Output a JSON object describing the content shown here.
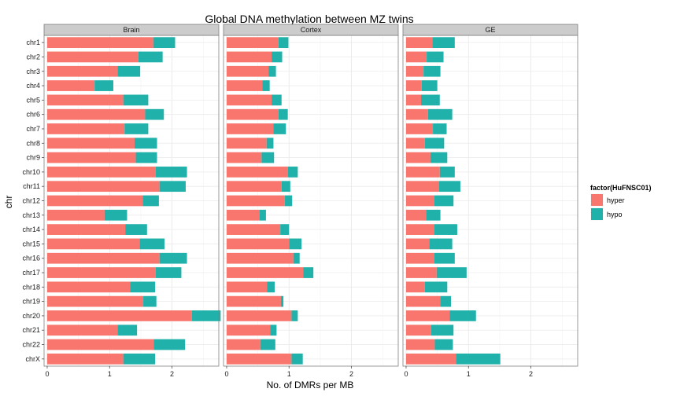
{
  "chart_data": {
    "type": "bar",
    "orientation": "horizontal",
    "stacked": true,
    "title": "Global DNA methylation between MZ twins",
    "xlabel": "No. of DMRs per MB",
    "ylabel": "chr",
    "xlim": [
      -0.05,
      2.75
    ],
    "xticks": [
      0,
      1,
      2
    ],
    "grid": true,
    "legend": {
      "title": "factor(HuFNSC01)",
      "position": "right"
    },
    "colors": {
      "hyper": "#F8766D",
      "hypo": "#20B2AA"
    },
    "categories": [
      "chr1",
      "chr2",
      "chr3",
      "chr4",
      "chr5",
      "chr6",
      "chr7",
      "chr8",
      "chr9",
      "chr10",
      "chr11",
      "chr12",
      "chr13",
      "chr14",
      "chr15",
      "chr16",
      "chr17",
      "chr18",
      "chr19",
      "chr20",
      "chr21",
      "chr22",
      "chrX"
    ],
    "facets": [
      {
        "name": "Brain",
        "series": [
          {
            "name": "hyper",
            "values": [
              1.7,
              1.46,
              1.13,
              0.76,
              1.22,
              1.57,
              1.24,
              1.4,
              1.42,
              1.74,
              1.8,
              1.53,
              0.92,
              1.25,
              1.48,
              1.8,
              1.74,
              1.33,
              1.54,
              2.32,
              1.13,
              1.71,
              1.22
            ]
          },
          {
            "name": "hypo",
            "values": [
              0.35,
              0.39,
              0.36,
              0.3,
              0.4,
              0.3,
              0.38,
              0.36,
              0.34,
              0.5,
              0.42,
              0.26,
              0.36,
              0.35,
              0.4,
              0.44,
              0.41,
              0.4,
              0.21,
              0.46,
              0.31,
              0.5,
              0.51
            ]
          }
        ]
      },
      {
        "name": "Cortex",
        "series": [
          {
            "name": "hyper",
            "values": [
              0.83,
              0.72,
              0.67,
              0.57,
              0.72,
              0.83,
              0.75,
              0.64,
              0.56,
              0.98,
              0.88,
              0.93,
              0.53,
              0.86,
              1.0,
              1.07,
              1.23,
              0.65,
              0.87,
              1.04,
              0.7,
              0.54,
              1.04
            ]
          },
          {
            "name": "hypo",
            "values": [
              0.16,
              0.17,
              0.12,
              0.12,
              0.16,
              0.15,
              0.2,
              0.11,
              0.2,
              0.16,
              0.14,
              0.12,
              0.1,
              0.14,
              0.2,
              0.1,
              0.16,
              0.12,
              0.04,
              0.1,
              0.1,
              0.24,
              0.18
            ]
          }
        ]
      },
      {
        "name": "GE",
        "series": [
          {
            "name": "hyper",
            "values": [
              0.42,
              0.33,
              0.28,
              0.25,
              0.24,
              0.35,
              0.43,
              0.3,
              0.39,
              0.54,
              0.53,
              0.45,
              0.32,
              0.45,
              0.37,
              0.45,
              0.49,
              0.3,
              0.55,
              0.7,
              0.4,
              0.46,
              0.8
            ]
          },
          {
            "name": "hypo",
            "values": [
              0.36,
              0.27,
              0.27,
              0.25,
              0.3,
              0.39,
              0.22,
              0.31,
              0.27,
              0.24,
              0.34,
              0.31,
              0.23,
              0.37,
              0.37,
              0.33,
              0.48,
              0.36,
              0.17,
              0.42,
              0.36,
              0.29,
              0.71
            ]
          }
        ]
      }
    ]
  }
}
